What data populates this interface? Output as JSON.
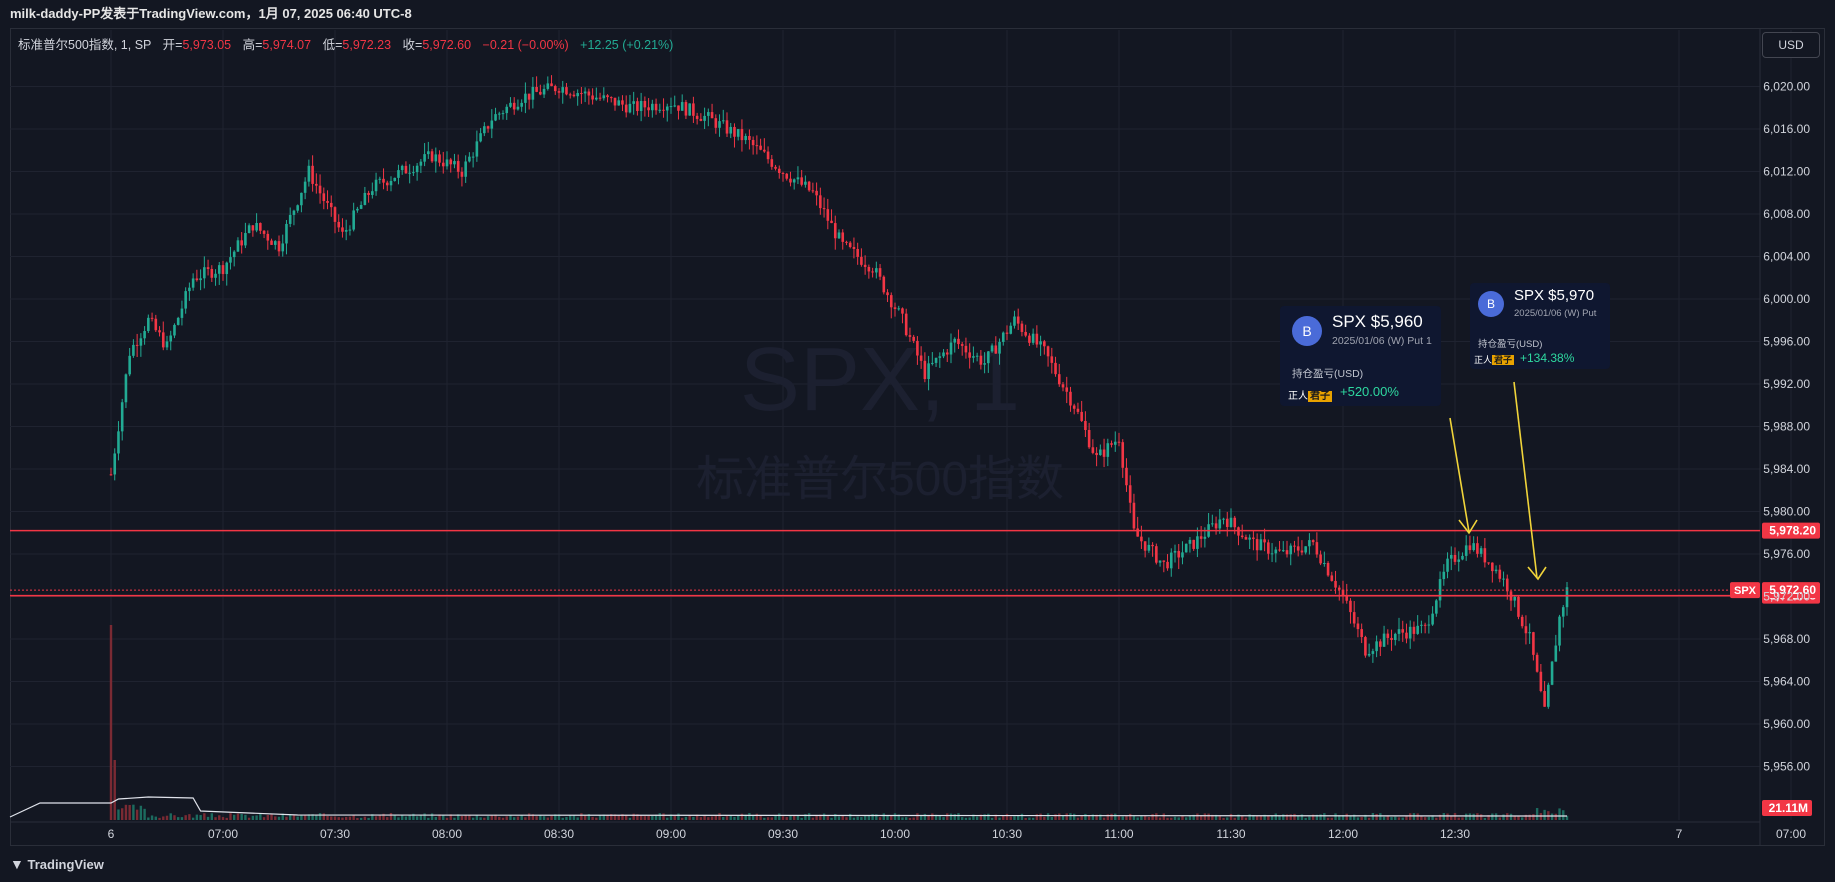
{
  "header": {
    "title": "milk-daddy-PP发表于TradingView.com，1月 07, 2025 06:40 UTC-8"
  },
  "legend": {
    "symbol": "标准普尔500指数, 1, SP",
    "open_label": "开=",
    "open": "5,973.05",
    "high_label": "高=",
    "high": "5,974.07",
    "low_label": "低=",
    "low": "5,972.23",
    "close_label": "收=",
    "close": "5,972.60",
    "change": "−0.21 (−0.00%)",
    "change2": "+12.25 (+0.21%)"
  },
  "currency_button": "USD",
  "watermark": {
    "line1": "SPX, 1",
    "line2": "标准普尔500指数"
  },
  "footer": {
    "brand": "TradingView"
  },
  "colors": {
    "up": "#22ab94",
    "down": "#f23645",
    "bg": "#131722",
    "grid": "#1f2330",
    "arrow": "#f0d43a"
  },
  "cards": [
    {
      "avatar": "B",
      "title": "SPX $5,960",
      "subtitle": "2025/01/06 (W) Put 1",
      "pnl_label": "持仓盈亏(USD)",
      "badge_a": "正人",
      "badge_b": "君子",
      "pnl": "+520.00%"
    },
    {
      "avatar": "B",
      "title": "SPX $5,970",
      "subtitle": "2025/01/06 (W) Put",
      "pnl_label": "持仓盈亏(USD)",
      "badge_a": "正人",
      "badge_b": "君子",
      "pnl": "+134.38%"
    }
  ],
  "chart_data": {
    "type": "candlestick",
    "ylim": [
      5952,
      6024
    ],
    "y_ticks": [
      "6,020.00",
      "6,016.00",
      "6,012.00",
      "6,008.00",
      "6,004.00",
      "6,000.00",
      "5,996.00",
      "5,992.00",
      "5,988.00",
      "5,984.00",
      "5,980.00",
      "5,976.00",
      "5,972.00",
      "5,968.00",
      "5,964.00",
      "5,960.00",
      "5,956.00"
    ],
    "y_tick_values": [
      6020,
      6016,
      6012,
      6008,
      6004,
      6000,
      5996,
      5992,
      5988,
      5984,
      5980,
      5976,
      5972,
      5968,
      5964,
      5960,
      5956
    ],
    "x_ticks": [
      "6",
      "07:00",
      "07:30",
      "08:00",
      "08:30",
      "09:00",
      "09:30",
      "10:00",
      "10:30",
      "11:00",
      "11:30",
      "12:00",
      "12:30",
      "7",
      "07:00"
    ],
    "x_tick_minutes": [
      390,
      420,
      450,
      480,
      510,
      540,
      570,
      600,
      630,
      660,
      690,
      720,
      750,
      810,
      840
    ],
    "session_start_minute": 390,
    "session_end_minute": 780,
    "close_path": [
      {
        "m": 390,
        "p": 5983.5
      },
      {
        "m": 395,
        "p": 5995
      },
      {
        "m": 400,
        "p": 5998
      },
      {
        "m": 405,
        "p": 5995.5
      },
      {
        "m": 412,
        "p": 6002
      },
      {
        "m": 420,
        "p": 6003
      },
      {
        "m": 428,
        "p": 6007
      },
      {
        "m": 435,
        "p": 6005
      },
      {
        "m": 443,
        "p": 6012
      },
      {
        "m": 452,
        "p": 6006
      },
      {
        "m": 460,
        "p": 6010.5
      },
      {
        "m": 468,
        "p": 6012
      },
      {
        "m": 476,
        "p": 6013.5
      },
      {
        "m": 484,
        "p": 6012
      },
      {
        "m": 492,
        "p": 6017
      },
      {
        "m": 500,
        "p": 6019
      },
      {
        "m": 510,
        "p": 6020
      },
      {
        "m": 520,
        "p": 6019
      },
      {
        "m": 530,
        "p": 6018
      },
      {
        "m": 540,
        "p": 6018.5
      },
      {
        "m": 550,
        "p": 6017
      },
      {
        "m": 560,
        "p": 6015
      },
      {
        "m": 570,
        "p": 6012
      },
      {
        "m": 578,
        "p": 6010
      },
      {
        "m": 586,
        "p": 6005
      },
      {
        "m": 594,
        "p": 6003
      },
      {
        "m": 602,
        "p": 5998
      },
      {
        "m": 608,
        "p": 5993
      },
      {
        "m": 616,
        "p": 5996
      },
      {
        "m": 624,
        "p": 5994
      },
      {
        "m": 632,
        "p": 5998
      },
      {
        "m": 640,
        "p": 5995
      },
      {
        "m": 648,
        "p": 5990
      },
      {
        "m": 654,
        "p": 5985
      },
      {
        "m": 660,
        "p": 5987
      },
      {
        "m": 664,
        "p": 5978
      },
      {
        "m": 672,
        "p": 5975
      },
      {
        "m": 680,
        "p": 5977
      },
      {
        "m": 688,
        "p": 5979.5
      },
      {
        "m": 696,
        "p": 5977
      },
      {
        "m": 704,
        "p": 5976
      },
      {
        "m": 712,
        "p": 5977
      },
      {
        "m": 720,
        "p": 5972
      },
      {
        "m": 726,
        "p": 5967
      },
      {
        "m": 734,
        "p": 5968.5
      },
      {
        "m": 742,
        "p": 5969
      },
      {
        "m": 748,
        "p": 5975
      },
      {
        "m": 754,
        "p": 5977
      },
      {
        "m": 760,
        "p": 5975
      },
      {
        "m": 764,
        "p": 5973
      },
      {
        "m": 770,
        "p": 5968
      },
      {
        "m": 774,
        "p": 5961
      },
      {
        "m": 778,
        "p": 5970
      },
      {
        "m": 780,
        "p": 5972.6
      }
    ],
    "price_lines": [
      {
        "value": 5978.2,
        "label": "5,978.20"
      },
      {
        "value": 5972.08,
        "label": "5,972.08"
      }
    ],
    "last_price": {
      "value": 5972.6,
      "label": "5,972.60",
      "tag": "SPX"
    },
    "volume_label": "21.11M"
  }
}
